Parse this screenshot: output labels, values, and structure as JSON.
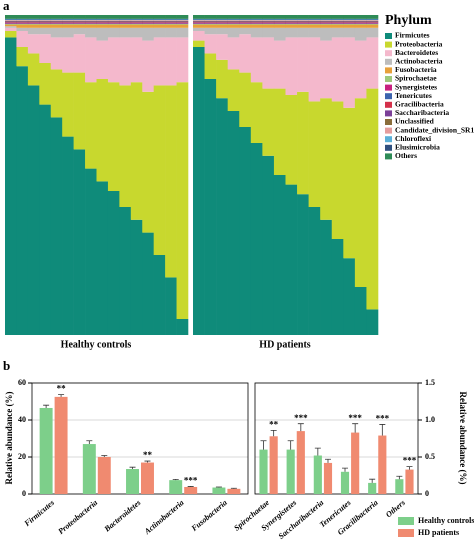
{
  "chart_data": [
    {
      "type": "stacked_bar",
      "panel_label": "a",
      "xlabel": "Healthy controls",
      "ylim": [
        0,
        100
      ],
      "categories": [
        null,
        null,
        null,
        null,
        null,
        null,
        null,
        null,
        null,
        null,
        null,
        null,
        null,
        null,
        null,
        null
      ],
      "series": [
        {
          "color": "#0f8b7a",
          "values": [
            93,
            84,
            78,
            72,
            68,
            62,
            58,
            52,
            48,
            45,
            40,
            36,
            32,
            25,
            18,
            5
          ]
        },
        {
          "color": "#c8d82e",
          "values": [
            2,
            6,
            10,
            13,
            15,
            20,
            24,
            27,
            32,
            34,
            38,
            43,
            44,
            53,
            60,
            74
          ]
        },
        {
          "color": "#f4b8cc",
          "values": [
            1,
            5,
            6,
            9,
            10,
            11,
            12,
            14,
            12,
            14,
            15,
            14,
            16,
            15,
            15,
            14
          ]
        },
        {
          "color": "#bdbdbd",
          "values": [
            0.5,
            1,
            2,
            2,
            3,
            3,
            2,
            3,
            4,
            3,
            3,
            3,
            4,
            3,
            3,
            3
          ]
        },
        {
          "color": "#e8a13a",
          "values": [
            0.5,
            1,
            1,
            1,
            1,
            1,
            1,
            1,
            1,
            1,
            1,
            1,
            1,
            1,
            1,
            1
          ]
        },
        {
          "color": "#9dc97b",
          "values": [
            0.2,
            0.2,
            0.2,
            0.2,
            0.2,
            0.2,
            0.2,
            0.2,
            0.2,
            0.2,
            0.2,
            0.2,
            0.2,
            0.2,
            0.2,
            0.2
          ]
        },
        {
          "color": "#c7217f",
          "values": [
            0.2,
            0.2,
            0.2,
            0.2,
            0.2,
            0.2,
            0.2,
            0.2,
            0.2,
            0.2,
            0.2,
            0.2,
            0.2,
            0.2,
            0.2,
            0.2
          ]
        },
        {
          "color": "#3b63ad",
          "values": [
            0.2,
            0.2,
            0.2,
            0.2,
            0.2,
            0.2,
            0.2,
            0.2,
            0.2,
            0.2,
            0.2,
            0.2,
            0.2,
            0.2,
            0.2,
            0.2
          ]
        },
        {
          "color": "#d4304a",
          "values": [
            0.2,
            0.2,
            0.2,
            0.2,
            0.2,
            0.2,
            0.2,
            0.2,
            0.2,
            0.2,
            0.2,
            0.2,
            0.2,
            0.2,
            0.2,
            0.2
          ]
        },
        {
          "color": "#7b3f98",
          "values": [
            0.2,
            0.2,
            0.2,
            0.2,
            0.2,
            0.2,
            0.2,
            0.2,
            0.2,
            0.2,
            0.2,
            0.2,
            0.2,
            0.2,
            0.2,
            0.2
          ]
        },
        {
          "color": "#8a6d3b",
          "values": [
            0.2,
            0.2,
            0.2,
            0.2,
            0.2,
            0.2,
            0.2,
            0.2,
            0.2,
            0.2,
            0.2,
            0.2,
            0.2,
            0.2,
            0.2,
            0.2
          ]
        },
        {
          "color": "#e59d9d",
          "values": [
            0.2,
            0.2,
            0.2,
            0.2,
            0.2,
            0.2,
            0.2,
            0.2,
            0.2,
            0.2,
            0.2,
            0.2,
            0.2,
            0.2,
            0.2,
            0.2
          ]
        },
        {
          "color": "#5bb0d8",
          "values": [
            0.2,
            0.2,
            0.2,
            0.2,
            0.2,
            0.2,
            0.2,
            0.2,
            0.2,
            0.2,
            0.2,
            0.2,
            0.2,
            0.2,
            0.2,
            0.2
          ]
        },
        {
          "color": "#2f4f7f",
          "values": [
            0.2,
            0.2,
            0.2,
            0.2,
            0.2,
            0.2,
            0.2,
            0.2,
            0.2,
            0.2,
            0.2,
            0.2,
            0.2,
            0.2,
            0.2,
            0.2
          ]
        },
        {
          "color": "#2e8b57",
          "values": [
            1.2,
            1.2,
            1.2,
            1.2,
            1.2,
            1.2,
            1.2,
            1.2,
            1.2,
            1.2,
            1.2,
            1.2,
            1.2,
            1.2,
            1.2,
            1.2
          ]
        }
      ]
    },
    {
      "type": "stacked_bar",
      "xlabel": "HD patients",
      "ylim": [
        0,
        100
      ],
      "legend_title": "Phylum",
      "legend": "right",
      "categories": [
        null,
        null,
        null,
        null,
        null,
        null,
        null,
        null,
        null,
        null,
        null,
        null,
        null,
        null,
        null,
        null
      ],
      "series": [
        {
          "name": "Firmicutes",
          "color": "#0f8b7a",
          "values": [
            90,
            80,
            74,
            70,
            65,
            60,
            56,
            50,
            47,
            44,
            40,
            36,
            30,
            24,
            15,
            8
          ]
        },
        {
          "name": "Proteobacteria",
          "color": "#c8d82e",
          "values": [
            2,
            8,
            12,
            13,
            17,
            19,
            21,
            27,
            28,
            32,
            33,
            38,
            43,
            47,
            59,
            69
          ]
        },
        {
          "name": "Bacteroidetes",
          "color": "#f4b8cc",
          "values": [
            3,
            6,
            8,
            10,
            12,
            14,
            16,
            15,
            18,
            17,
            20,
            18,
            20,
            22,
            18,
            16
          ]
        },
        {
          "name": "Actinobacteria",
          "color": "#bdbdbd",
          "values": [
            1,
            2,
            2,
            3,
            2,
            3,
            3,
            4,
            3,
            3,
            3,
            4,
            3,
            3,
            4,
            3
          ]
        },
        {
          "name": "Fusobacteria",
          "color": "#e8a13a",
          "values": [
            1,
            1,
            1,
            1,
            1,
            1,
            1,
            1,
            1,
            1,
            1,
            1,
            1,
            1,
            1,
            1
          ]
        },
        {
          "name": "Spirochaetae",
          "color": "#9dc97b",
          "values": [
            0.2,
            0.2,
            0.2,
            0.2,
            0.2,
            0.2,
            0.2,
            0.2,
            0.2,
            0.2,
            0.2,
            0.2,
            0.2,
            0.2,
            0.2,
            0.2
          ]
        },
        {
          "name": "Synergistetes",
          "color": "#c7217f",
          "values": [
            0.2,
            0.2,
            0.2,
            0.2,
            0.2,
            0.2,
            0.2,
            0.2,
            0.2,
            0.2,
            0.2,
            0.2,
            0.2,
            0.2,
            0.2,
            0.2
          ]
        },
        {
          "name": "Tenericutes",
          "color": "#3b63ad",
          "values": [
            0.2,
            0.2,
            0.2,
            0.2,
            0.2,
            0.2,
            0.2,
            0.2,
            0.2,
            0.2,
            0.2,
            0.2,
            0.2,
            0.2,
            0.2,
            0.2
          ]
        },
        {
          "name": "Gracilibacteria",
          "color": "#d4304a",
          "values": [
            0.2,
            0.2,
            0.2,
            0.2,
            0.2,
            0.2,
            0.2,
            0.2,
            0.2,
            0.2,
            0.2,
            0.2,
            0.2,
            0.2,
            0.2,
            0.2
          ]
        },
        {
          "name": "Saccharibacteria",
          "color": "#7b3f98",
          "values": [
            0.2,
            0.2,
            0.2,
            0.2,
            0.2,
            0.2,
            0.2,
            0.2,
            0.2,
            0.2,
            0.2,
            0.2,
            0.2,
            0.2,
            0.2,
            0.2
          ]
        },
        {
          "name": "Unclassified",
          "color": "#8a6d3b",
          "values": [
            0.2,
            0.2,
            0.2,
            0.2,
            0.2,
            0.2,
            0.2,
            0.2,
            0.2,
            0.2,
            0.2,
            0.2,
            0.2,
            0.2,
            0.2,
            0.2
          ]
        },
        {
          "name": "Candidate_division_SR1",
          "color": "#e59d9d",
          "values": [
            0.2,
            0.2,
            0.2,
            0.2,
            0.2,
            0.2,
            0.2,
            0.2,
            0.2,
            0.2,
            0.2,
            0.2,
            0.2,
            0.2,
            0.2,
            0.2
          ]
        },
        {
          "name": "Chloroflexi",
          "color": "#5bb0d8",
          "values": [
            0.2,
            0.2,
            0.2,
            0.2,
            0.2,
            0.2,
            0.2,
            0.2,
            0.2,
            0.2,
            0.2,
            0.2,
            0.2,
            0.2,
            0.2,
            0.2
          ]
        },
        {
          "name": "Elusimicrobia",
          "color": "#2f4f7f",
          "values": [
            0.2,
            0.2,
            0.2,
            0.2,
            0.2,
            0.2,
            0.2,
            0.2,
            0.2,
            0.2,
            0.2,
            0.2,
            0.2,
            0.2,
            0.2,
            0.2
          ]
        },
        {
          "name": "Others",
          "color": "#2e8b57",
          "values": [
            1.2,
            1.2,
            1.2,
            1.2,
            1.2,
            1.2,
            1.2,
            1.2,
            1.2,
            1.2,
            1.2,
            1.2,
            1.2,
            1.2,
            1.2,
            1.2
          ]
        }
      ]
    },
    {
      "type": "grouped_bar",
      "panel_label": "b",
      "ylabel": "Relative abundance (%)",
      "y2label": "Relative abundance (%)",
      "categories": [
        "Firmicutes",
        "Proteobacteria",
        "Bacteroidetes",
        "Actinobacteria",
        "Fusobacteria",
        "Spirochaetae",
        "Synergistetes",
        "Saccharibacteria",
        "Tenericutes",
        "Gracilibacteria",
        "Others"
      ],
      "axes": [
        "y",
        "y",
        "y",
        "y",
        "y",
        "y2",
        "y2",
        "y2",
        "y2",
        "y2",
        "y2"
      ],
      "ylim": [
        0,
        60
      ],
      "yticks": [
        0,
        20,
        40,
        60
      ],
      "y2lim": [
        0,
        1.5
      ],
      "y2ticks": [
        0,
        0.5,
        {
          "value": 1,
          "label": "1.0"
        },
        1.5
      ],
      "grid": true,
      "legend": "lower right",
      "significance": [
        "**",
        null,
        "**",
        "***",
        null,
        "**",
        "***",
        null,
        "***",
        "***",
        "***"
      ],
      "series": [
        {
          "name": "Healthy controls",
          "color": "#7dcf8a",
          "values": [
            46.5,
            27,
            13.5,
            7.5,
            3.5,
            0.6,
            0.6,
            0.52,
            0.3,
            0.15,
            0.2
          ],
          "errors": [
            1.5,
            1.8,
            1,
            0.4,
            0.3,
            0.12,
            0.12,
            0.1,
            0.05,
            0.05,
            0.04
          ]
        },
        {
          "name": "HD patients",
          "color": "#f08a70",
          "values": [
            52.5,
            20,
            17,
            3.8,
            2.8,
            0.78,
            0.85,
            0.42,
            0.83,
            0.79,
            0.33
          ],
          "errors": [
            1.2,
            0.8,
            0.8,
            0.3,
            0.3,
            0.08,
            0.1,
            0.05,
            0.12,
            0.15,
            0.04
          ]
        }
      ]
    }
  ]
}
